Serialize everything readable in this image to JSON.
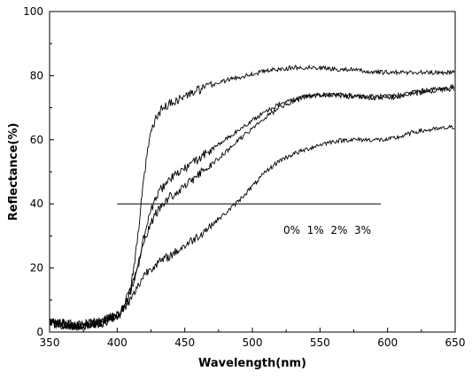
{
  "chart_data": {
    "type": "line",
    "title": "",
    "xlabel": "Wavelength(nm)",
    "ylabel": "Reflectance(%)",
    "xlim": [
      350,
      650
    ],
    "ylim": [
      0,
      100
    ],
    "x_ticks": [
      350,
      400,
      450,
      500,
      550,
      600,
      650
    ],
    "y_ticks": [
      0,
      20,
      40,
      60,
      80,
      100
    ],
    "grid": false,
    "legend": null,
    "annotation_text": "0%  1%  2%  3%",
    "reference_line": {
      "x1": 400,
      "x2": 595,
      "y": 40
    },
    "line_color": "#000000",
    "series": [
      {
        "x": [
          350,
          360,
          370,
          380,
          390,
          400,
          405,
          410,
          413,
          416,
          419,
          422,
          425,
          428,
          432,
          436,
          440,
          445,
          450,
          460,
          470,
          480,
          490,
          500,
          510,
          520,
          530,
          540,
          550,
          560,
          570,
          580,
          590,
          600,
          610,
          620,
          630,
          640,
          650
        ],
        "y": [
          3,
          2.5,
          2,
          2.5,
          3.5,
          5,
          8,
          14,
          22,
          33,
          45,
          55,
          62,
          66,
          69,
          70.5,
          71.5,
          72.5,
          73.5,
          75.5,
          77,
          78.5,
          79.5,
          80.5,
          81.5,
          82,
          82.5,
          82.5,
          82.5,
          82,
          82,
          81.5,
          81,
          81,
          81,
          81,
          81,
          81,
          81
        ]
      },
      {
        "x": [
          350,
          360,
          370,
          380,
          390,
          400,
          405,
          410,
          415,
          420,
          425,
          430,
          435,
          440,
          445,
          450,
          460,
          470,
          480,
          490,
          500,
          510,
          520,
          530,
          540,
          550,
          560,
          570,
          580,
          590,
          600,
          610,
          620,
          630,
          640,
          650
        ],
        "y": [
          3,
          2.5,
          2,
          2.5,
          3.5,
          5,
          8,
          13,
          20,
          30,
          38,
          43,
          46,
          48,
          49.5,
          51,
          54,
          57,
          60,
          63,
          66,
          69,
          71,
          72.5,
          73.5,
          74,
          74,
          73.5,
          73.5,
          73,
          73,
          73.5,
          74.5,
          75,
          75.5,
          76
        ]
      },
      {
        "x": [
          350,
          360,
          370,
          380,
          390,
          400,
          405,
          410,
          415,
          420,
          425,
          430,
          435,
          440,
          445,
          450,
          460,
          470,
          480,
          490,
          500,
          510,
          520,
          530,
          540,
          550,
          560,
          570,
          580,
          590,
          600,
          610,
          620,
          630,
          640,
          650
        ],
        "y": [
          3,
          2.5,
          2,
          2.5,
          3.5,
          5,
          8,
          13,
          20,
          28,
          34,
          38,
          40.5,
          42.5,
          44,
          45.5,
          49,
          52.5,
          56,
          60,
          63.5,
          67,
          70,
          72,
          73.5,
          74,
          74,
          74,
          73.5,
          73.5,
          73.5,
          74,
          75,
          75.5,
          76,
          76.5
        ]
      },
      {
        "x": [
          350,
          360,
          370,
          380,
          390,
          400,
          405,
          410,
          415,
          420,
          425,
          430,
          440,
          450,
          460,
          470,
          480,
          490,
          500,
          510,
          520,
          530,
          540,
          550,
          560,
          570,
          580,
          590,
          600,
          610,
          620,
          630,
          640,
          650
        ],
        "y": [
          3,
          2.5,
          2,
          2.5,
          3,
          5,
          7,
          10,
          14,
          18,
          20,
          21.5,
          24,
          27,
          30,
          33.5,
          37,
          41,
          45.5,
          50,
          53.5,
          55.5,
          57,
          58.5,
          59.5,
          60,
          60,
          60,
          60,
          61,
          62.5,
          63,
          63.5,
          64
        ]
      }
    ]
  }
}
